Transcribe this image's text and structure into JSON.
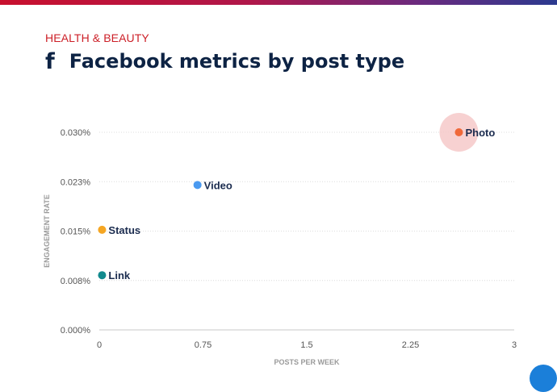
{
  "header": {
    "category": "HEALTH & BEAUTY",
    "icon": "facebook-f-icon",
    "icon_glyph": "f",
    "title": "Facebook metrics by post type"
  },
  "chart_data": {
    "type": "scatter",
    "title": "Facebook metrics by post type",
    "subtitle": "HEALTH & BEAUTY",
    "xlabel": "POSTS PER WEEK",
    "ylabel": "ENGAGEMENT RATE",
    "xlim": [
      0,
      3
    ],
    "ylim": [
      0.0,
      0.03
    ],
    "xticks": [
      0,
      0.75,
      1.5,
      2.25,
      3
    ],
    "xtick_labels": [
      "0",
      "0.75",
      "1.5",
      "2.25",
      "3"
    ],
    "yticks": [
      0.0,
      0.0075,
      0.015,
      0.0225,
      0.03
    ],
    "ytick_labels": [
      "0.000%",
      "0.008%",
      "0.015%",
      "0.023%",
      "0.030%"
    ],
    "grid": "horizontal dotted",
    "points": [
      {
        "label": "Link",
        "x": 0.02,
        "y": 0.0083,
        "color": "#128a8e"
      },
      {
        "label": "Status",
        "x": 0.02,
        "y": 0.0152,
        "color": "#f5a623"
      },
      {
        "label": "Video",
        "x": 0.71,
        "y": 0.022,
        "color": "#4a9af0"
      },
      {
        "label": "Photo",
        "x": 2.6,
        "y": 0.03,
        "color": "#f0693a",
        "highlight": true,
        "halo_color": "#f6c9c9"
      }
    ]
  }
}
